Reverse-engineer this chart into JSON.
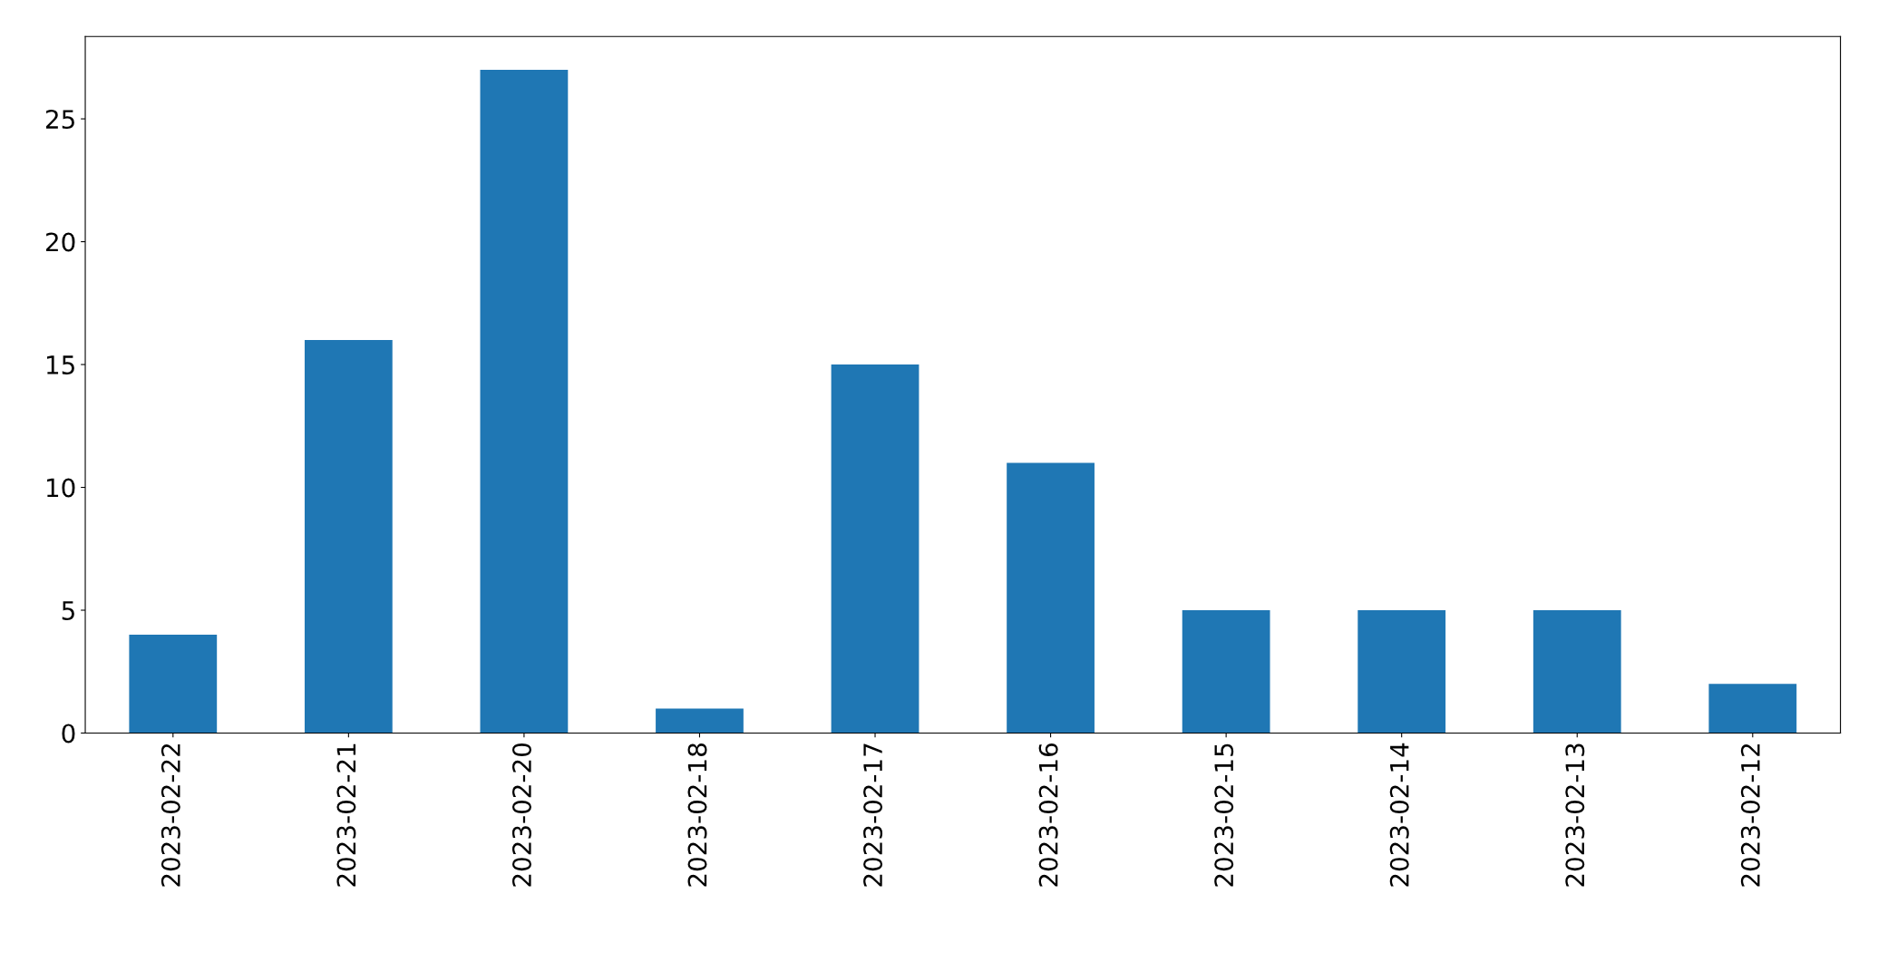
{
  "chart_data": {
    "type": "bar",
    "categories": [
      "2023-02-22",
      "2023-02-21",
      "2023-02-20",
      "2023-02-18",
      "2023-02-17",
      "2023-02-16",
      "2023-02-15",
      "2023-02-14",
      "2023-02-13",
      "2023-02-12"
    ],
    "values": [
      4,
      16,
      27,
      1,
      15,
      11,
      5,
      5,
      5,
      2
    ],
    "color": "#1f77b4",
    "ylim": [
      0,
      28.35
    ],
    "yticks": [
      0,
      5,
      10,
      15,
      20,
      25
    ],
    "grid": false,
    "legend": false
  }
}
